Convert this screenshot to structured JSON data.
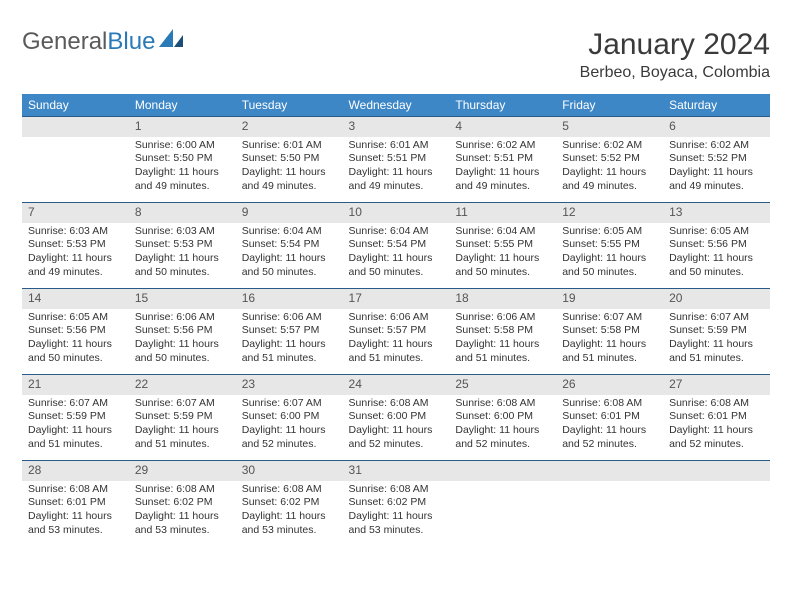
{
  "logo": {
    "text1": "General",
    "text2": "Blue"
  },
  "title": "January 2024",
  "location": "Berbeo, Boyaca, Colombia",
  "colors": {
    "header_bg": "#3d87c7",
    "header_fg": "#ffffff",
    "daynum_bg": "#e7e7e7",
    "rule": "#2a5a88",
    "text": "#333333",
    "logo_gray": "#5a5a5a",
    "logo_blue": "#2a7ab8"
  },
  "weekdays": [
    "Sunday",
    "Monday",
    "Tuesday",
    "Wednesday",
    "Thursday",
    "Friday",
    "Saturday"
  ],
  "first_weekday_index": 1,
  "days": [
    {
      "n": 1,
      "sunrise": "6:00 AM",
      "sunset": "5:50 PM",
      "daylight": "11 hours and 49 minutes."
    },
    {
      "n": 2,
      "sunrise": "6:01 AM",
      "sunset": "5:50 PM",
      "daylight": "11 hours and 49 minutes."
    },
    {
      "n": 3,
      "sunrise": "6:01 AM",
      "sunset": "5:51 PM",
      "daylight": "11 hours and 49 minutes."
    },
    {
      "n": 4,
      "sunrise": "6:02 AM",
      "sunset": "5:51 PM",
      "daylight": "11 hours and 49 minutes."
    },
    {
      "n": 5,
      "sunrise": "6:02 AM",
      "sunset": "5:52 PM",
      "daylight": "11 hours and 49 minutes."
    },
    {
      "n": 6,
      "sunrise": "6:02 AM",
      "sunset": "5:52 PM",
      "daylight": "11 hours and 49 minutes."
    },
    {
      "n": 7,
      "sunrise": "6:03 AM",
      "sunset": "5:53 PM",
      "daylight": "11 hours and 49 minutes."
    },
    {
      "n": 8,
      "sunrise": "6:03 AM",
      "sunset": "5:53 PM",
      "daylight": "11 hours and 50 minutes."
    },
    {
      "n": 9,
      "sunrise": "6:04 AM",
      "sunset": "5:54 PM",
      "daylight": "11 hours and 50 minutes."
    },
    {
      "n": 10,
      "sunrise": "6:04 AM",
      "sunset": "5:54 PM",
      "daylight": "11 hours and 50 minutes."
    },
    {
      "n": 11,
      "sunrise": "6:04 AM",
      "sunset": "5:55 PM",
      "daylight": "11 hours and 50 minutes."
    },
    {
      "n": 12,
      "sunrise": "6:05 AM",
      "sunset": "5:55 PM",
      "daylight": "11 hours and 50 minutes."
    },
    {
      "n": 13,
      "sunrise": "6:05 AM",
      "sunset": "5:56 PM",
      "daylight": "11 hours and 50 minutes."
    },
    {
      "n": 14,
      "sunrise": "6:05 AM",
      "sunset": "5:56 PM",
      "daylight": "11 hours and 50 minutes."
    },
    {
      "n": 15,
      "sunrise": "6:06 AM",
      "sunset": "5:56 PM",
      "daylight": "11 hours and 50 minutes."
    },
    {
      "n": 16,
      "sunrise": "6:06 AM",
      "sunset": "5:57 PM",
      "daylight": "11 hours and 51 minutes."
    },
    {
      "n": 17,
      "sunrise": "6:06 AM",
      "sunset": "5:57 PM",
      "daylight": "11 hours and 51 minutes."
    },
    {
      "n": 18,
      "sunrise": "6:06 AM",
      "sunset": "5:58 PM",
      "daylight": "11 hours and 51 minutes."
    },
    {
      "n": 19,
      "sunrise": "6:07 AM",
      "sunset": "5:58 PM",
      "daylight": "11 hours and 51 minutes."
    },
    {
      "n": 20,
      "sunrise": "6:07 AM",
      "sunset": "5:59 PM",
      "daylight": "11 hours and 51 minutes."
    },
    {
      "n": 21,
      "sunrise": "6:07 AM",
      "sunset": "5:59 PM",
      "daylight": "11 hours and 51 minutes."
    },
    {
      "n": 22,
      "sunrise": "6:07 AM",
      "sunset": "5:59 PM",
      "daylight": "11 hours and 51 minutes."
    },
    {
      "n": 23,
      "sunrise": "6:07 AM",
      "sunset": "6:00 PM",
      "daylight": "11 hours and 52 minutes."
    },
    {
      "n": 24,
      "sunrise": "6:08 AM",
      "sunset": "6:00 PM",
      "daylight": "11 hours and 52 minutes."
    },
    {
      "n": 25,
      "sunrise": "6:08 AM",
      "sunset": "6:00 PM",
      "daylight": "11 hours and 52 minutes."
    },
    {
      "n": 26,
      "sunrise": "6:08 AM",
      "sunset": "6:01 PM",
      "daylight": "11 hours and 52 minutes."
    },
    {
      "n": 27,
      "sunrise": "6:08 AM",
      "sunset": "6:01 PM",
      "daylight": "11 hours and 52 minutes."
    },
    {
      "n": 28,
      "sunrise": "6:08 AM",
      "sunset": "6:01 PM",
      "daylight": "11 hours and 53 minutes."
    },
    {
      "n": 29,
      "sunrise": "6:08 AM",
      "sunset": "6:02 PM",
      "daylight": "11 hours and 53 minutes."
    },
    {
      "n": 30,
      "sunrise": "6:08 AM",
      "sunset": "6:02 PM",
      "daylight": "11 hours and 53 minutes."
    },
    {
      "n": 31,
      "sunrise": "6:08 AM",
      "sunset": "6:02 PM",
      "daylight": "11 hours and 53 minutes."
    }
  ],
  "labels": {
    "sunrise": "Sunrise:",
    "sunset": "Sunset:",
    "daylight": "Daylight:"
  }
}
